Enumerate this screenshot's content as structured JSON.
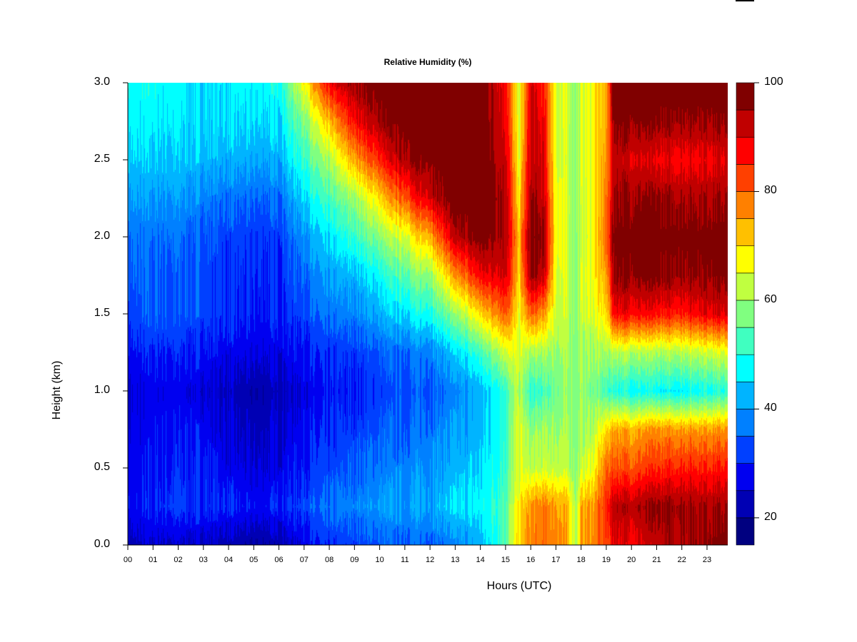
{
  "chart_data": {
    "type": "heatmap",
    "title": "Relative Humidity (%)",
    "xlabel": "Hours (UTC)",
    "ylabel": "Height (km)",
    "xlim": [
      0,
      23.83
    ],
    "ylim": [
      0,
      3.0
    ],
    "x_ticks": [
      "00",
      "01",
      "02",
      "03",
      "04",
      "05",
      "06",
      "07",
      "08",
      "09",
      "10",
      "11",
      "12",
      "13",
      "14",
      "15",
      "16",
      "17",
      "18",
      "19",
      "20",
      "21",
      "22",
      "23"
    ],
    "y_ticks": [
      "0.0",
      "0.5",
      "1.0",
      "1.5",
      "2.0",
      "2.5",
      "3.0"
    ],
    "colorbar": {
      "levels": [
        15,
        20,
        25,
        30,
        35,
        40,
        45,
        50,
        55,
        60,
        65,
        70,
        75,
        80,
        85,
        90,
        95,
        100
      ],
      "colors": [
        "#000080",
        "#0000B4",
        "#0000F0",
        "#0040FF",
        "#0080FF",
        "#00B4FF",
        "#00FFFF",
        "#40FFC0",
        "#80FF80",
        "#C0FF40",
        "#FFFF00",
        "#FFC000",
        "#FF8000",
        "#FF4000",
        "#FF0000",
        "#C00000",
        "#800000"
      ],
      "tick_labels": [
        "20",
        "40",
        "60",
        "80",
        "100"
      ]
    },
    "heights_km": [
      0,
      0.25,
      0.5,
      0.75,
      1.0,
      1.25,
      1.5,
      1.75,
      2.0,
      2.25,
      2.5,
      2.75,
      3.0
    ],
    "hours": [
      0,
      1,
      2,
      3,
      4,
      5,
      6,
      7,
      8,
      9,
      10,
      11,
      12,
      13,
      14,
      15,
      15.5,
      16,
      16.5,
      17,
      17.5,
      17.8,
      18,
      18.5,
      19,
      19.3,
      20,
      21,
      22,
      23,
      23.83
    ],
    "values": [
      [
        22,
        28,
        27,
        26,
        25,
        28,
        32,
        34,
        36,
        40,
        44,
        47,
        48
      ],
      [
        25,
        30,
        29,
        28,
        27,
        30,
        35,
        35,
        36,
        40,
        44,
        47,
        48
      ],
      [
        24,
        32,
        30,
        29,
        27,
        30,
        34,
        34,
        36,
        40,
        44,
        46,
        47
      ],
      [
        24,
        31,
        30,
        28,
        26,
        29,
        33,
        33,
        34,
        38,
        43,
        45,
        46
      ],
      [
        22,
        30,
        27,
        25,
        23,
        27,
        31,
        31,
        32,
        36,
        42,
        45,
        47
      ],
      [
        20,
        28,
        25,
        23,
        21,
        26,
        29,
        30,
        31,
        35,
        41,
        45,
        47
      ],
      [
        22,
        30,
        27,
        25,
        23,
        27,
        30,
        31,
        32,
        36,
        42,
        46,
        49
      ],
      [
        27,
        33,
        30,
        28,
        27,
        29,
        33,
        36,
        40,
        46,
        52,
        58,
        68
      ],
      [
        30,
        36,
        32,
        30,
        28,
        30,
        36,
        40,
        45,
        52,
        60,
        72,
        88
      ],
      [
        32,
        38,
        35,
        32,
        30,
        32,
        38,
        43,
        52,
        60,
        75,
        88,
        96
      ],
      [
        34,
        40,
        37,
        34,
        32,
        34,
        42,
        48,
        58,
        70,
        85,
        95,
        99
      ],
      [
        35,
        40,
        38,
        35,
        33,
        36,
        46,
        55,
        65,
        82,
        95,
        99,
        100
      ],
      [
        35,
        42,
        40,
        37,
        35,
        38,
        50,
        60,
        75,
        92,
        98,
        100,
        100
      ],
      [
        37,
        45,
        42,
        40,
        37,
        44,
        58,
        75,
        92,
        99,
        100,
        100,
        100
      ],
      [
        42,
        47,
        45,
        43,
        42,
        52,
        70,
        88,
        98,
        100,
        100,
        100,
        100
      ],
      [
        55,
        55,
        52,
        52,
        52,
        65,
        82,
        92,
        95,
        95,
        92,
        90,
        88
      ],
      [
        70,
        68,
        65,
        65,
        62,
        64,
        66,
        70,
        72,
        68,
        65,
        64,
        64
      ],
      [
        78,
        76,
        62,
        58,
        50,
        60,
        80,
        96,
        98,
        95,
        93,
        92,
        90
      ],
      [
        78,
        78,
        63,
        60,
        52,
        60,
        75,
        92,
        96,
        92,
        90,
        88,
        85
      ],
      [
        78,
        76,
        63,
        60,
        57,
        60,
        64,
        66,
        67,
        67,
        66,
        66,
        66
      ],
      [
        72,
        72,
        62,
        60,
        58,
        60,
        62,
        63,
        63,
        63,
        62,
        63,
        63
      ],
      [
        60,
        60,
        58,
        58,
        58,
        58,
        58,
        58,
        58,
        60,
        60,
        60,
        60
      ],
      [
        75,
        74,
        63,
        60,
        58,
        60,
        63,
        64,
        62,
        63,
        64,
        64,
        64
      ],
      [
        78,
        76,
        67,
        62,
        57,
        60,
        65,
        68,
        68,
        68,
        68,
        68,
        68
      ],
      [
        82,
        85,
        80,
        70,
        52,
        60,
        70,
        75,
        80,
        78,
        76,
        75,
        75
      ],
      [
        90,
        94,
        82,
        75,
        50,
        62,
        88,
        97,
        98,
        96,
        93,
        98,
        100
      ],
      [
        88,
        94,
        82,
        74,
        48,
        62,
        88,
        97,
        98,
        96,
        91,
        97,
        100
      ],
      [
        92,
        96,
        84,
        76,
        47,
        60,
        86,
        97,
        98,
        96,
        88,
        96,
        100
      ],
      [
        95,
        96,
        86,
        76,
        47,
        62,
        86,
        96,
        98,
        95,
        88,
        96,
        100
      ],
      [
        97,
        95,
        86,
        76,
        49,
        64,
        90,
        97,
        98,
        95,
        89,
        96,
        100
      ],
      [
        98,
        95,
        86,
        76,
        50,
        65,
        90,
        97,
        98,
        95,
        90,
        96,
        100
      ]
    ]
  }
}
